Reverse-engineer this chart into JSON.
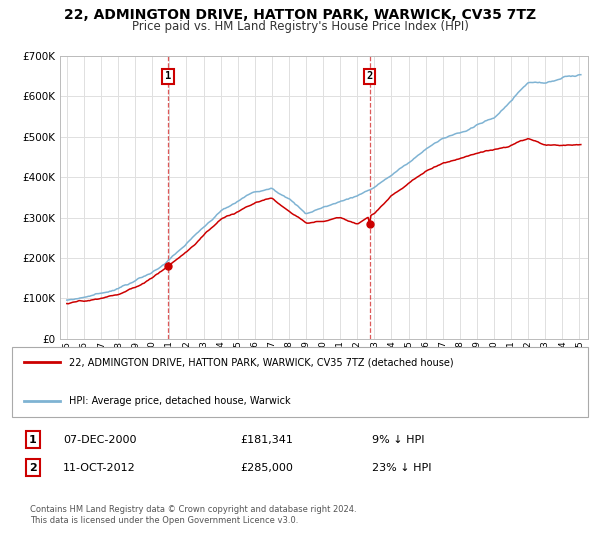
{
  "title": "22, ADMINGTON DRIVE, HATTON PARK, WARWICK, CV35 7TZ",
  "subtitle": "Price paid vs. HM Land Registry's House Price Index (HPI)",
  "title_fontsize": 10,
  "subtitle_fontsize": 8.5,
  "ylim": [
    0,
    700000
  ],
  "yticks": [
    0,
    100000,
    200000,
    300000,
    400000,
    500000,
    600000,
    700000
  ],
  "ytick_labels": [
    "£0",
    "£100K",
    "£200K",
    "£300K",
    "£400K",
    "£500K",
    "£600K",
    "£700K"
  ],
  "hpi_color": "#7fb3d3",
  "property_color": "#cc0000",
  "marker1_label": "07-DEC-2000",
  "marker1_price": "£181,341",
  "marker1_hpi": "9% ↓ HPI",
  "marker2_label": "11-OCT-2012",
  "marker2_price": "£285,000",
  "marker2_hpi": "23% ↓ HPI",
  "legend_line1": "22, ADMINGTON DRIVE, HATTON PARK, WARWICK, CV35 7TZ (detached house)",
  "legend_line2": "HPI: Average price, detached house, Warwick",
  "footer": "Contains HM Land Registry data © Crown copyright and database right 2024.\nThis data is licensed under the Open Government Licence v3.0.",
  "background_color": "#ffffff",
  "grid_color": "#e0e0e0",
  "hpi_key_years": [
    1995,
    1996,
    1997,
    1998,
    1999,
    2000,
    2001,
    2002,
    2003,
    2004,
    2005,
    2006,
    2007,
    2008,
    2009,
    2010,
    2011,
    2012,
    2013,
    2014,
    2015,
    2016,
    2017,
    2018,
    2019,
    2020,
    2021,
    2022,
    2023,
    2024,
    2025
  ],
  "hpi_key_vals": [
    95000,
    103000,
    113000,
    125000,
    143000,
    165000,
    195000,
    235000,
    275000,
    315000,
    340000,
    365000,
    375000,
    345000,
    310000,
    325000,
    340000,
    355000,
    375000,
    405000,
    435000,
    470000,
    495000,
    510000,
    530000,
    545000,
    590000,
    635000,
    635000,
    645000,
    655000
  ],
  "prop_key_years": [
    1995,
    1996,
    1997,
    1998,
    1999,
    2000,
    2001,
    2002,
    2003,
    2004,
    2005,
    2006,
    2007,
    2008,
    2009,
    2010,
    2011,
    2012,
    2013,
    2014,
    2015,
    2016,
    2017,
    2018,
    2019,
    2020,
    2021,
    2022,
    2023,
    2024,
    2025
  ],
  "prop_key_vals": [
    88000,
    93000,
    100000,
    110000,
    128000,
    150000,
    181341,
    215000,
    255000,
    295000,
    315000,
    338000,
    348000,
    318000,
    285000,
    290000,
    300000,
    285000,
    310000,
    355000,
    385000,
    415000,
    435000,
    445000,
    460000,
    468000,
    480000,
    495000,
    480000,
    478000,
    480000
  ],
  "marker1_year": 2000.92,
  "marker2_year": 2012.75,
  "marker1_price_val": 181341,
  "marker2_price_val": 285000
}
